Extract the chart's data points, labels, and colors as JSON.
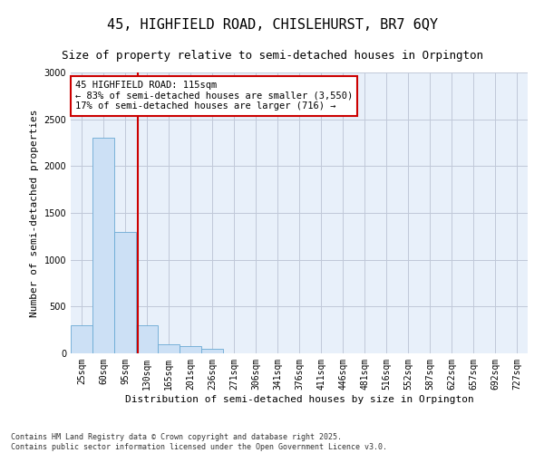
{
  "title_line1": "45, HIGHFIELD ROAD, CHISLEHURST, BR7 6QY",
  "title_line2": "Size of property relative to semi-detached houses in Orpington",
  "xlabel": "Distribution of semi-detached houses by size in Orpington",
  "ylabel": "Number of semi-detached properties",
  "footer": "Contains HM Land Registry data © Crown copyright and database right 2025.\nContains public sector information licensed under the Open Government Licence v3.0.",
  "bin_labels": [
    "25sqm",
    "60sqm",
    "95sqm",
    "130sqm",
    "165sqm",
    "201sqm",
    "236sqm",
    "271sqm",
    "306sqm",
    "341sqm",
    "376sqm",
    "411sqm",
    "446sqm",
    "481sqm",
    "516sqm",
    "552sqm",
    "587sqm",
    "622sqm",
    "657sqm",
    "692sqm",
    "727sqm"
  ],
  "bar_values": [
    300,
    2300,
    1300,
    300,
    100,
    75,
    50,
    0,
    0,
    0,
    0,
    0,
    0,
    0,
    0,
    0,
    0,
    0,
    0,
    0,
    0
  ],
  "bar_color": "#cce0f5",
  "bar_edge_color": "#6aaad4",
  "vline_color": "#cc0000",
  "vline_x": 2.58,
  "annotation_text": "45 HIGHFIELD ROAD: 115sqm\n← 83% of semi-detached houses are smaller (3,550)\n17% of semi-detached houses are larger (716) →",
  "annotation_box_color": "#ffffff",
  "annotation_box_edge": "#cc0000",
  "ylim": [
    0,
    3000
  ],
  "yticks": [
    0,
    500,
    1000,
    1500,
    2000,
    2500,
    3000
  ],
  "plot_bg_color": "#e8f0fa",
  "bg_color": "#ffffff",
  "grid_color": "#c0c8d8",
  "title1_fontsize": 11,
  "title2_fontsize": 9,
  "axis_label_fontsize": 8,
  "tick_fontsize": 7,
  "annotation_fontsize": 7.5,
  "footer_fontsize": 6
}
